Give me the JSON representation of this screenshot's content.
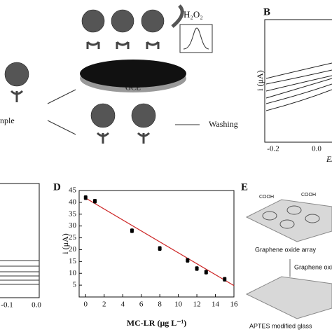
{
  "panel_a": {
    "oxidant": "H₂O₂",
    "electrode": "GCE",
    "sample": "nple",
    "washing": "Washing"
  },
  "panel_b": {
    "label": "B",
    "y_label": "i (μA)",
    "x_label": "E/",
    "x_ticks": [
      "-0.2",
      "0.0"
    ]
  },
  "panel_c": {
    "x_ticks": [
      "-0.1",
      "0.0"
    ]
  },
  "panel_d": {
    "label": "D"
  },
  "chart_data": {
    "type": "scatter",
    "y_label": "i (μA)",
    "x_label": "MC-LR (μg L⁻¹)",
    "x": [
      0,
      1,
      5,
      8,
      11,
      12,
      13,
      15
    ],
    "values": [
      42,
      40.5,
      28,
      20.5,
      15.5,
      12,
      10.5,
      7.5
    ],
    "errors": [
      0.8,
      0.8,
      0.8,
      0.8,
      0.8,
      0.8,
      0.8,
      0.8
    ],
    "color": "#000000",
    "fit_line": {
      "x": [
        0,
        16
      ],
      "y": [
        41.8,
        4.8
      ],
      "color": "#cc2222"
    },
    "xlim": [
      -0.7,
      16
    ],
    "ylim": [
      0,
      45
    ],
    "xticks": [
      0,
      2,
      4,
      6,
      8,
      10,
      12,
      14,
      16
    ],
    "yticks": [
      5,
      10,
      15,
      20,
      25,
      30,
      35,
      40,
      45
    ]
  },
  "panel_e": {
    "label": "E",
    "cooh_left": "COOH",
    "cooh_right": "COOH",
    "array": "Graphene oxide array",
    "arrow_label": "Graphene oxi",
    "glass": "APTES modified glass"
  }
}
